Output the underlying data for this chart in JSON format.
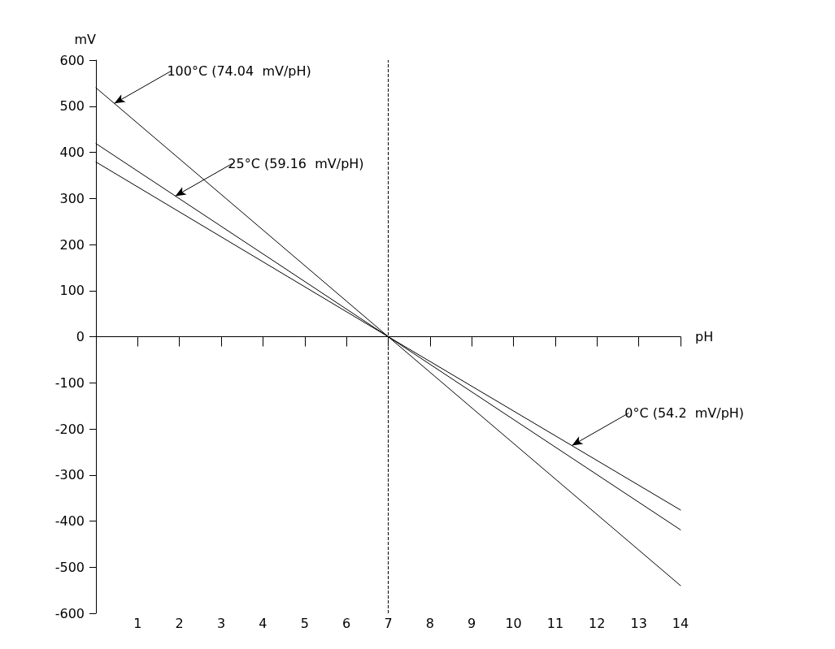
{
  "chart_data": {
    "type": "line",
    "xlabel": "pH",
    "ylabel": "mV",
    "x": [
      0,
      7,
      14
    ],
    "series": [
      {
        "color": "#000000",
        "values": [
          540,
          0,
          -540
        ]
      },
      {
        "color": "#000000",
        "values": [
          419,
          0,
          -419
        ]
      },
      {
        "color": "#000000",
        "values": [
          379,
          0,
          -376
        ]
      }
    ],
    "xlim": [
      0,
      14
    ],
    "xticks": [
      1,
      2,
      3,
      4,
      5,
      6,
      7,
      8,
      9,
      10,
      11,
      12,
      13,
      14
    ],
    "ylim": [
      -600,
      600
    ],
    "yticks": [
      -600,
      -500,
      -400,
      -300,
      -200,
      -100,
      0,
      100,
      200,
      300,
      400,
      500,
      600
    ],
    "ref_lines": [
      {
        "axis": "x",
        "value": 7,
        "line_style": "dashed",
        "color": "#000000"
      }
    ],
    "annotations": [
      {
        "text": "100°C (74.04  mV/pH)",
        "x": 0.44,
        "y": 506
      },
      {
        "text": "25°C (59.16  mV/pH)",
        "x": 1.9,
        "y": 305
      },
      {
        "text": "0°C (54.2  mV/pH)",
        "x": 11.4,
        "y": -236
      }
    ],
    "grid": false,
    "marker": "none",
    "line_style": "solid"
  }
}
